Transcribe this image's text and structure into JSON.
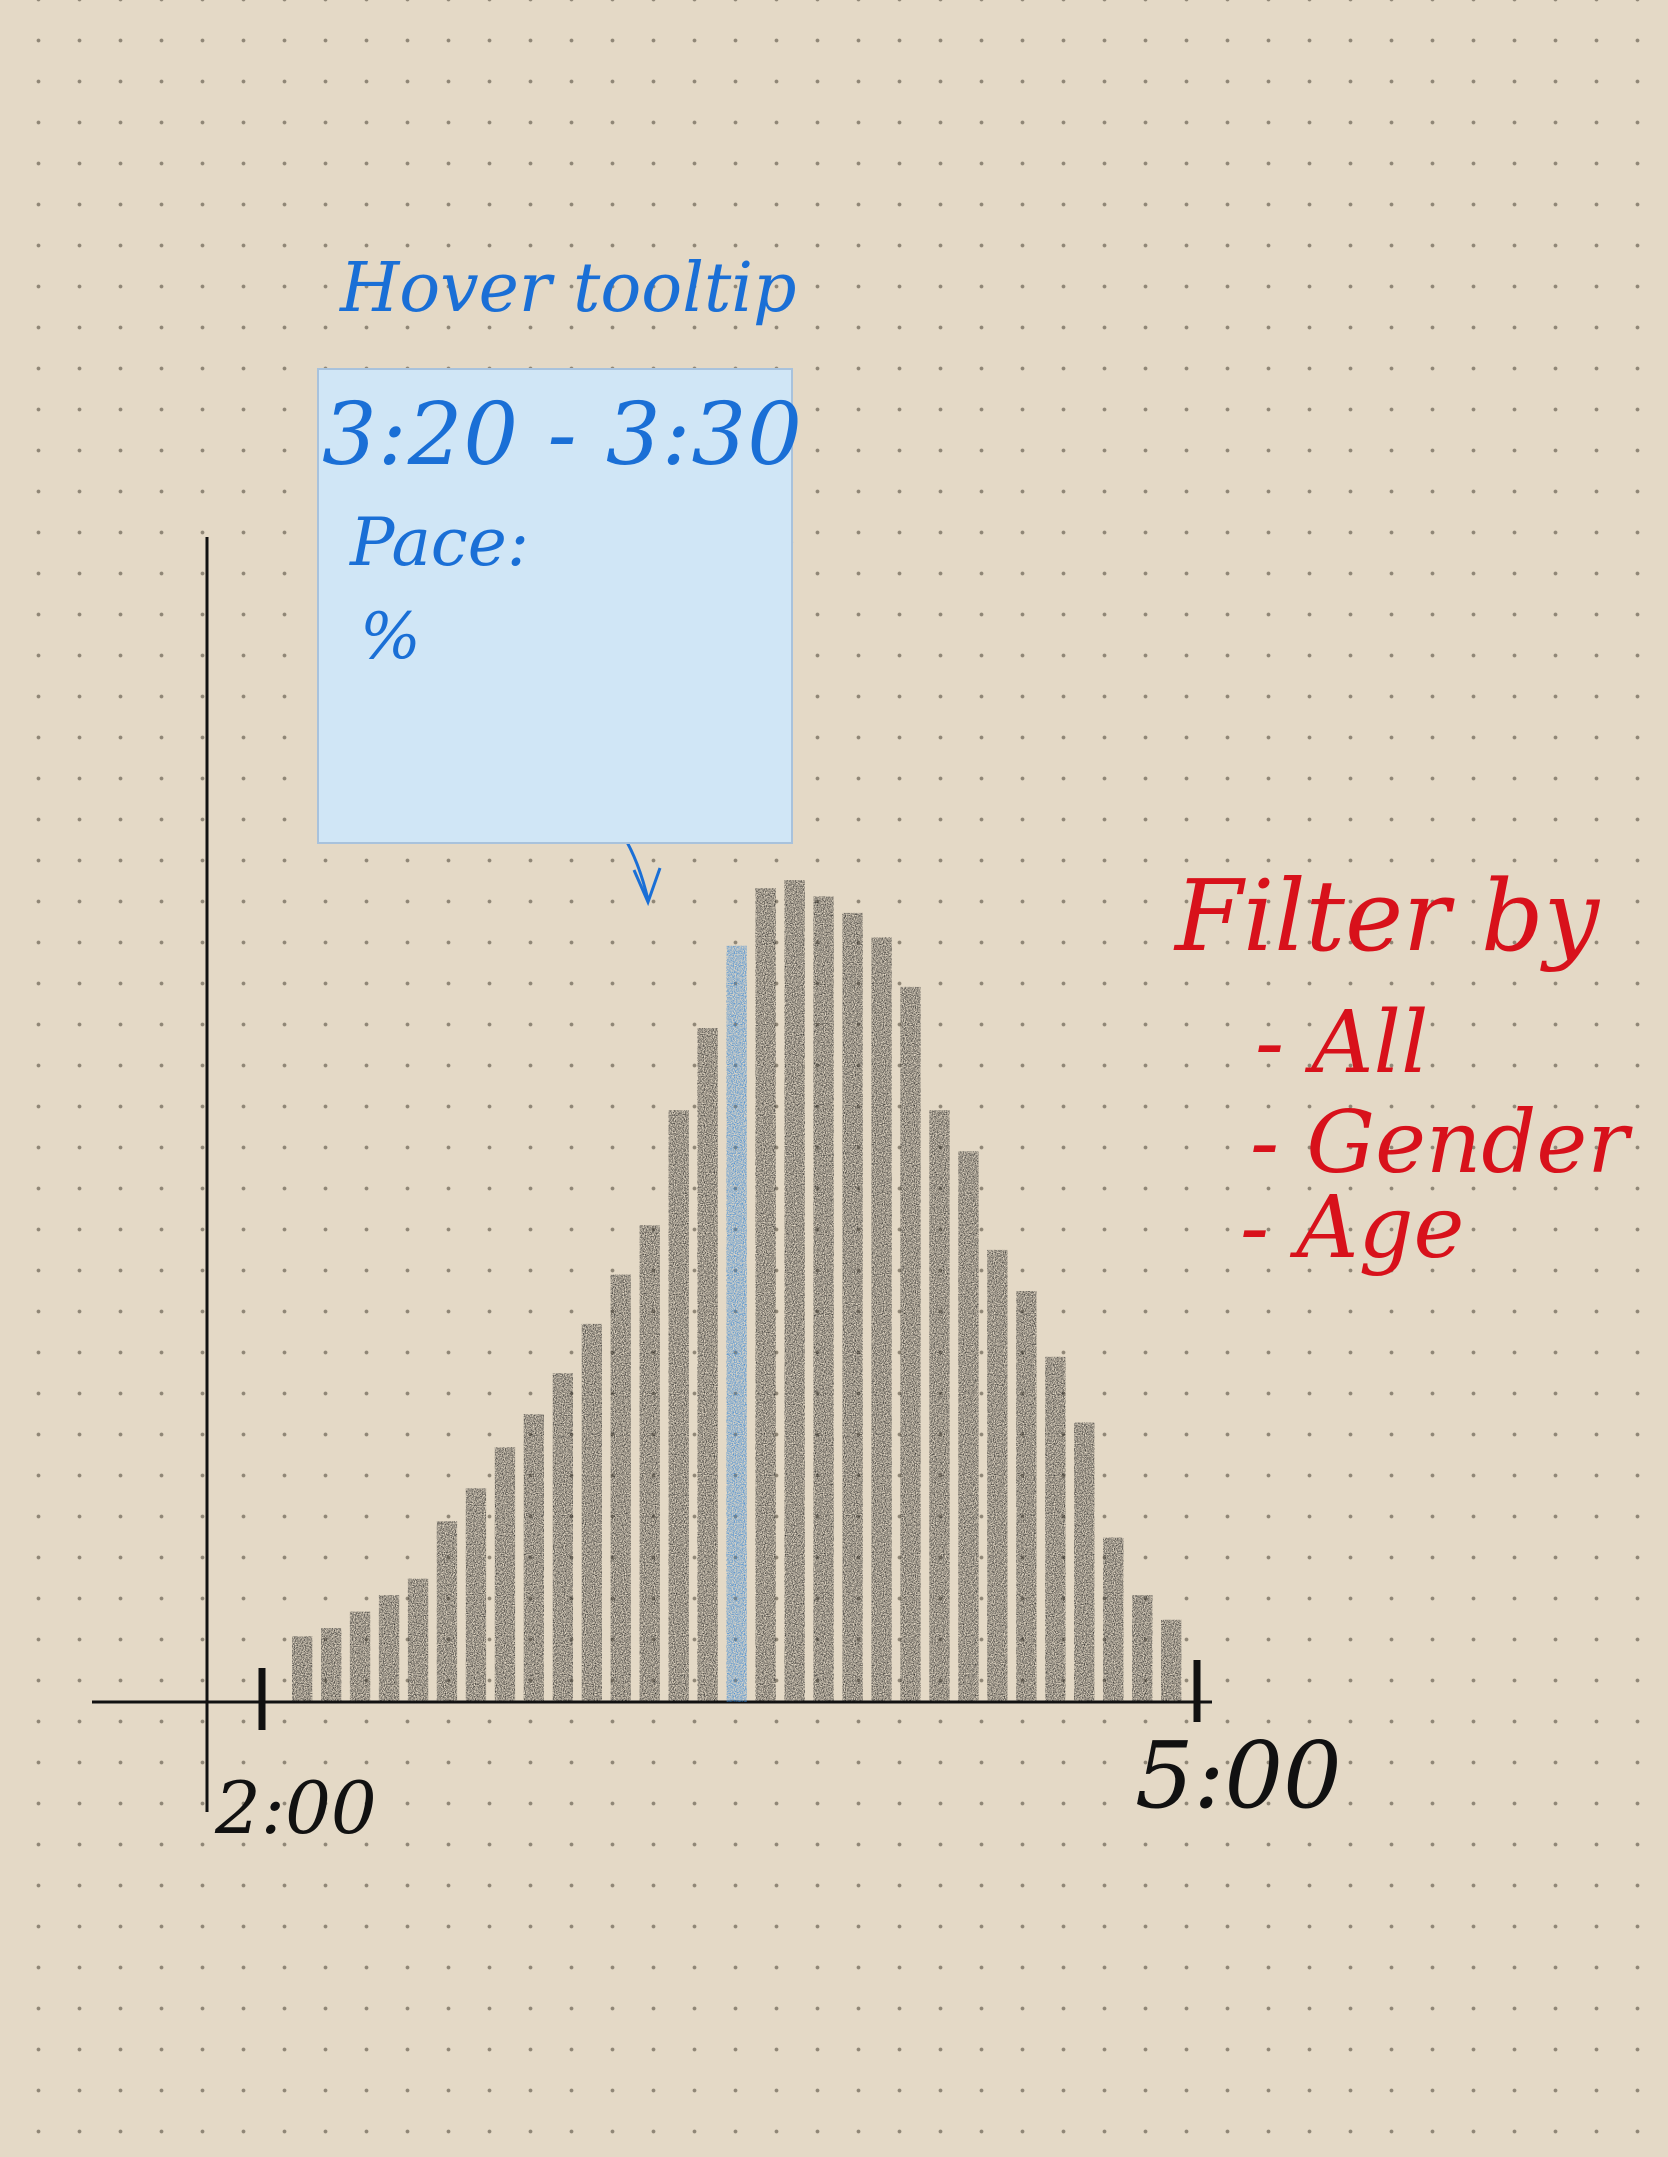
{
  "tooltip": {
    "title": "Hover tooltip",
    "range": "3:20 - 3:30",
    "pace_label": "Pace:",
    "pct_label": "%"
  },
  "filter": {
    "title": "Filter by",
    "options": [
      "- All",
      "- Gender",
      "- Age"
    ]
  },
  "x_axis": {
    "start_label": "2:00",
    "end_label": "5:00"
  },
  "chart_data": {
    "type": "bar",
    "title": "",
    "xlabel": "",
    "ylabel": "",
    "x_range": [
      "2:00",
      "5:00"
    ],
    "highlighted_bin": "3:20 - 3:30",
    "highlight_color": "#2a7fd4",
    "bar_color": "#1b1b1b",
    "relative_heights": [
      0.08,
      0.09,
      0.11,
      0.13,
      0.15,
      0.22,
      0.26,
      0.31,
      0.35,
      0.4,
      0.46,
      0.52,
      0.58,
      0.72,
      0.82,
      0.92,
      0.99,
      1.0,
      0.98,
      0.96,
      0.93,
      0.87,
      0.72,
      0.67,
      0.55,
      0.5,
      0.42,
      0.34,
      0.2,
      0.13,
      0.1
    ],
    "highlight_index": 15
  },
  "colors": {
    "paper": "#e4d9c6",
    "dots": "#8f8676",
    "tooltip_fill": "#d0e6f6",
    "blue_ink": "#1a6fd6",
    "red_ink": "#d8111b",
    "black_ink": "#111111"
  }
}
